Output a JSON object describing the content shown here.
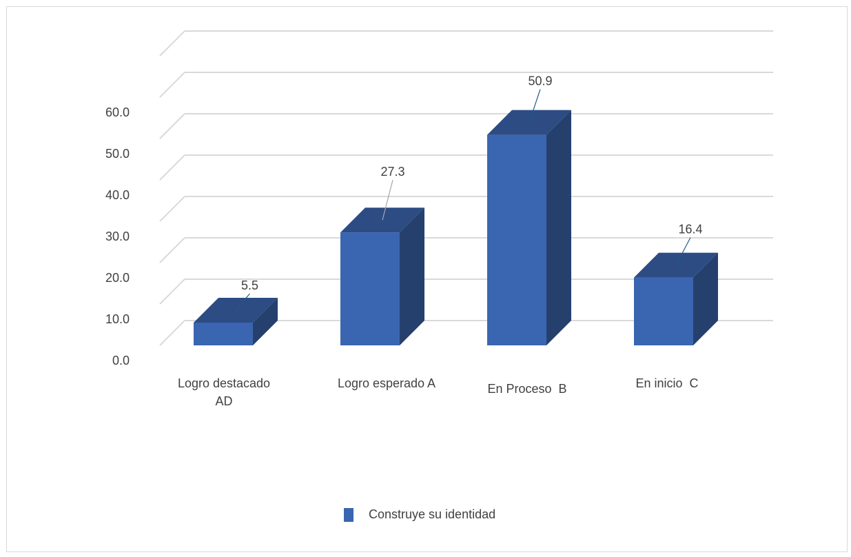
{
  "chart_data": {
    "type": "bar",
    "style": "3d-column",
    "categories": [
      [
        "Logro destacado",
        "AD"
      ],
      [
        "Logro esperado A"
      ],
      [
        "En Proceso  B"
      ],
      [
        "En inicio  C"
      ]
    ],
    "series": [
      {
        "name": "Construye su identidad",
        "values": [
          5.5,
          27.3,
          50.9,
          16.4
        ]
      }
    ],
    "data_labels": [
      "5.5",
      "27.3",
      "50.9",
      "16.4"
    ],
    "y_ticks": [
      "0.0",
      "10.0",
      "20.0",
      "30.0",
      "40.0",
      "50.0",
      "60.0"
    ],
    "ylim": [
      0,
      60
    ],
    "grid": true,
    "legend_position": "bottom",
    "colors": {
      "bar_front": "#3a65b0",
      "bar_side": "#26406e",
      "bar_top": "#2d4c84",
      "grid": "#d9d9d9",
      "label_line_dark": "#1f5b8a",
      "label_line_gray": "#a6a6a6"
    }
  },
  "legend": {
    "label": "Construye su identidad"
  }
}
